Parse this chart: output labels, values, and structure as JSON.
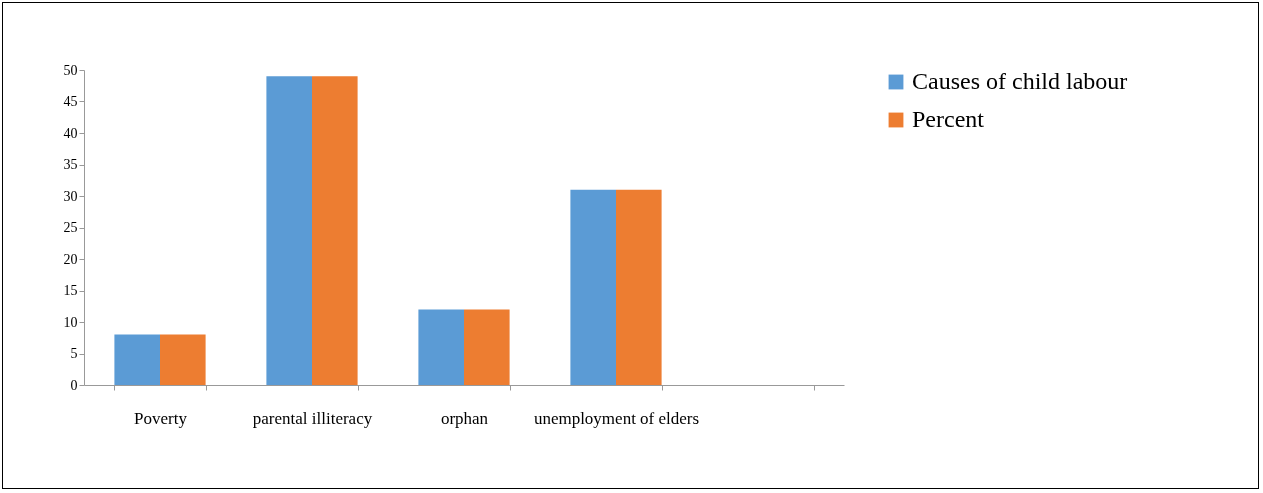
{
  "chart_data": {
    "type": "bar",
    "categories": [
      "Poverty",
      "parental illiteracy",
      "orphan",
      "unemployment of elders",
      null
    ],
    "series": [
      {
        "name": "Causes of child labour",
        "color": "#5b9bd5",
        "values": [
          8,
          49,
          12,
          31,
          null
        ]
      },
      {
        "name": "Percent",
        "color": "#ed7d31",
        "values": [
          8,
          49,
          12,
          31,
          null
        ]
      }
    ],
    "ylim": [
      0,
      50
    ],
    "yticks": [
      0,
      5,
      10,
      15,
      20,
      25,
      30,
      35,
      40,
      45,
      50
    ],
    "grid": false,
    "legend": "right"
  }
}
